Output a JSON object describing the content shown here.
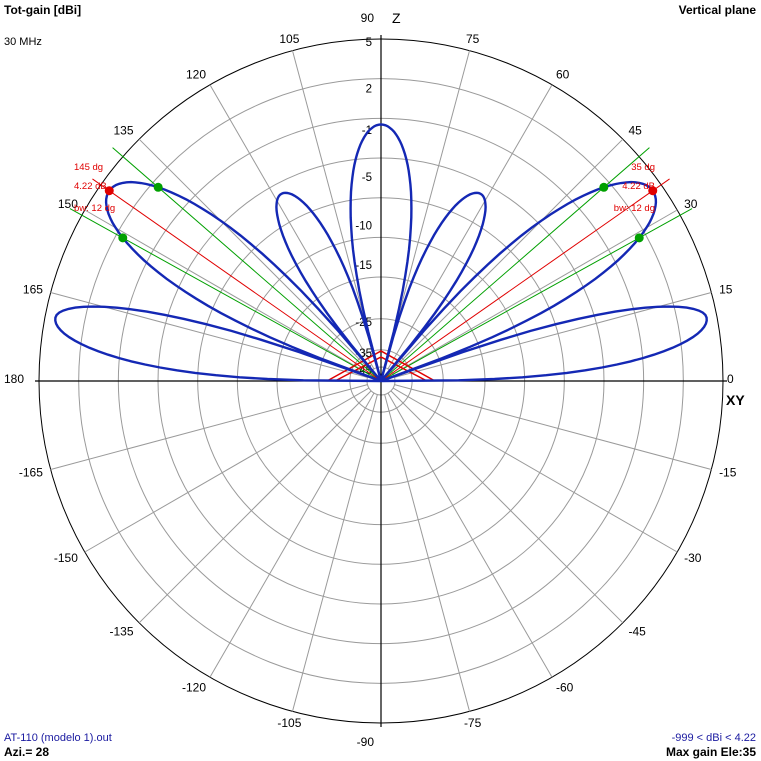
{
  "header": {
    "title": "Tot-gain [dBi]",
    "frequency": "30 MHz",
    "plane": "Vertical plane"
  },
  "footer": {
    "filename": "AT-110 (modelo 1).out",
    "azimuth": "Azi.= 28",
    "range": "-999 < dBi < 4.22",
    "max_gain": "Max gain Ele:35"
  },
  "colors": {
    "pattern": "#1428b4",
    "grid": "#9a9a9a",
    "axis": "#000000",
    "markers": "#e00000",
    "beamwidth": "#00a000"
  },
  "chart_data": {
    "type": "polar",
    "title": "Tot-gain [dBi]",
    "angle_labels": [
      {
        "deg": 0,
        "label": "0"
      },
      {
        "deg": 15,
        "label": "15"
      },
      {
        "deg": 30,
        "label": "30"
      },
      {
        "deg": 45,
        "label": "45"
      },
      {
        "deg": 60,
        "label": "60"
      },
      {
        "deg": 75,
        "label": "75"
      },
      {
        "deg": 90,
        "label": "90"
      },
      {
        "deg": 105,
        "label": "105"
      },
      {
        "deg": 120,
        "label": "120"
      },
      {
        "deg": 135,
        "label": "135"
      },
      {
        "deg": 150,
        "label": "150"
      },
      {
        "deg": 165,
        "label": "165"
      },
      {
        "deg": 180,
        "label": "180"
      },
      {
        "deg": -165,
        "label": "-165"
      },
      {
        "deg": -150,
        "label": "-150"
      },
      {
        "deg": -135,
        "label": "-135"
      },
      {
        "deg": -120,
        "label": "-120"
      },
      {
        "deg": -105,
        "label": "-105"
      },
      {
        "deg": -90,
        "label": "-90"
      },
      {
        "deg": -75,
        "label": "-75"
      },
      {
        "deg": -60,
        "label": "-60"
      },
      {
        "deg": -45,
        "label": "-45"
      },
      {
        "deg": -30,
        "label": "-30"
      },
      {
        "deg": -15,
        "label": "-15"
      }
    ],
    "axis_labels": {
      "z": "Z",
      "xy": "XY"
    },
    "ring_labels": [
      {
        "label": "5",
        "rel": 1.0
      },
      {
        "label": "2",
        "rel": 0.864
      },
      {
        "label": "-1",
        "rel": 0.743
      },
      {
        "label": "-5",
        "rel": 0.605
      },
      {
        "label": "-10",
        "rel": 0.463
      },
      {
        "label": "-15",
        "rel": 0.348
      },
      {
        "label": "-25",
        "rel": 0.182
      },
      {
        "label": "-35",
        "rel": 0.091
      },
      {
        "label": "-45",
        "rel": 0.041
      }
    ],
    "grid_rings_rel": [
      1.0,
      0.884,
      0.768,
      0.652,
      0.536,
      0.42,
      0.304,
      0.182,
      0.091,
      0.041
    ],
    "max_gain_dbi": 4.22,
    "max_gain_elevation_deg": 35,
    "lobes": [
      {
        "angle_deg": 90,
        "rel": 0.75
      },
      {
        "angle_deg": 35,
        "rel": 0.97
      },
      {
        "angle_deg": 145,
        "rel": 0.97
      },
      {
        "angle_deg": 62,
        "rel": 0.62
      },
      {
        "angle_deg": 118,
        "rel": 0.62
      },
      {
        "angle_deg": 11,
        "rel": 0.97
      },
      {
        "angle_deg": 169,
        "rel": 0.97
      }
    ],
    "nulls_deg": [
      0,
      20,
      50,
      75,
      105,
      130,
      160,
      180
    ],
    "markers": [
      {
        "side": "right",
        "angle_deg": 35,
        "angle_label": "35 dg",
        "gain_label": "4.22 dB",
        "bw_label": "bw: 12 dg"
      },
      {
        "side": "left",
        "angle_deg": 145,
        "angle_label": "145 dg",
        "gain_label": "4.22 dB",
        "bw_label": "bw: 12 dg"
      }
    ],
    "beamwidth_lines_deg": [
      29,
      41,
      139,
      151
    ],
    "beamwidth_points_deg": [
      29,
      41,
      139,
      151
    ]
  }
}
